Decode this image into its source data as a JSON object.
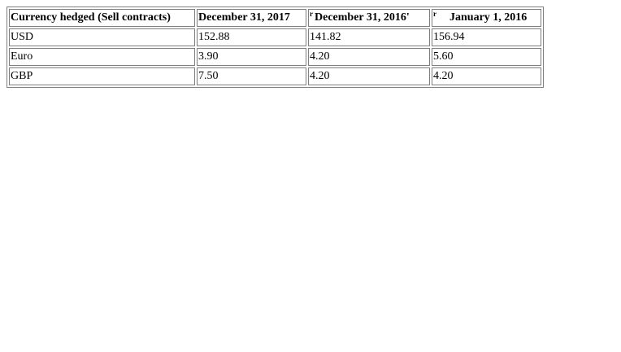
{
  "table": {
    "headers": {
      "currency": "Currency hedged (Sell contracts)",
      "dec2017": "December 31, 2017",
      "dec2016_mark": "r",
      "dec2016": "December 31, 2016'",
      "jan2016_mark": "r",
      "jan2016": "January 1, 2016"
    },
    "rows": [
      {
        "currency": "USD",
        "dec2017": "152.88",
        "dec2016": "141.82",
        "jan2016": "156.94"
      },
      {
        "currency": "Euro",
        "dec2017": "3.90",
        "dec2016": "4.20",
        "jan2016": "5.60"
      },
      {
        "currency": "GBP",
        "dec2017": "7.50",
        "dec2016": "4.20",
        "jan2016": "4.20"
      }
    ]
  }
}
